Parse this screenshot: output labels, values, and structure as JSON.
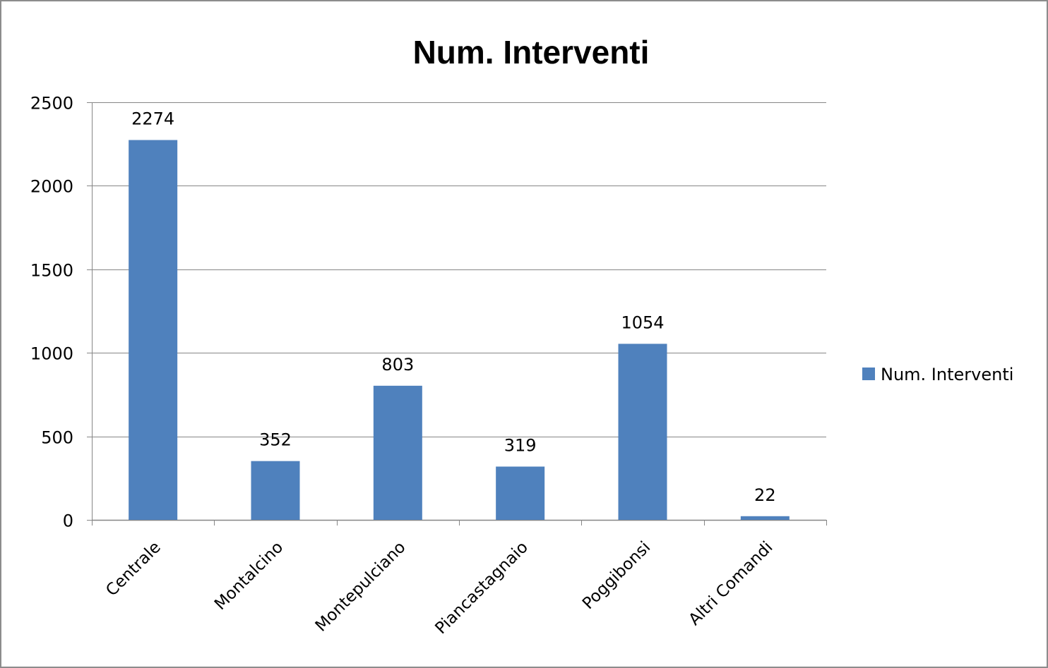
{
  "chart_data": {
    "type": "bar",
    "title": "Num. Interventi",
    "categories": [
      "Centrale",
      "Montalcino",
      "Montepulciano",
      "Piancastagnaio",
      "Poggibonsi",
      "Altri Comandi"
    ],
    "series": [
      {
        "name": "Num. Interventi",
        "values": [
          2274,
          352,
          803,
          319,
          1054,
          22
        ],
        "color": "#4f81bd"
      }
    ],
    "data_labels": [
      "2274",
      "352",
      "803",
      "319",
      "1054",
      "22"
    ],
    "yticks": [
      "0",
      "500",
      "1000",
      "1500",
      "2000",
      "2500"
    ],
    "ylim": [
      0,
      2500
    ],
    "grid": true,
    "legend": "right",
    "xlabel": "",
    "ylabel": ""
  },
  "colors": {
    "bar": "#4f81bd",
    "grid": "#868686",
    "frame": "#8c8c8c"
  }
}
